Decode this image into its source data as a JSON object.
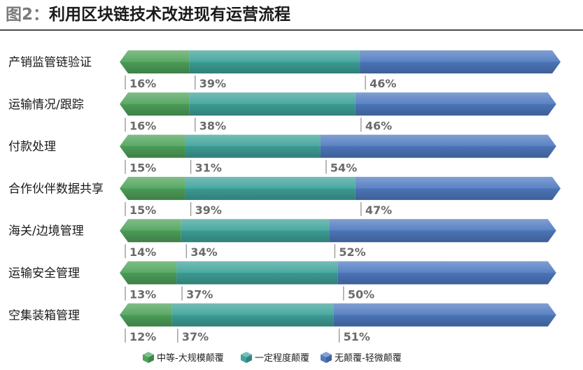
{
  "title": {
    "prefix": "图2：",
    "text": "利用区块链技术改进现有运营流程"
  },
  "chart_data": {
    "type": "bar",
    "orientation": "horizontal",
    "stacked": true,
    "xlim": [
      0,
      101
    ],
    "categories": [
      "产销监管链验证",
      "运输情况/跟踪",
      "付款处理",
      "合作伙伴数据共享",
      "海关/边境管理",
      "运输安全管理",
      "空集装箱管理"
    ],
    "series": [
      {
        "name": "中等-大规模颠覆",
        "values": [
          16,
          16,
          15,
          15,
          14,
          13,
          12
        ],
        "color": "#4fa35b"
      },
      {
        "name": "一定程度颠覆",
        "values": [
          39,
          38,
          31,
          39,
          34,
          37,
          37
        ],
        "color": "#3ea39a"
      },
      {
        "name": "无颠覆-轻微颠覆",
        "values": [
          46,
          46,
          54,
          47,
          52,
          50,
          51
        ],
        "color": "#4f7ac0"
      }
    ],
    "legend": {
      "position": "bottom"
    },
    "grid": false
  }
}
